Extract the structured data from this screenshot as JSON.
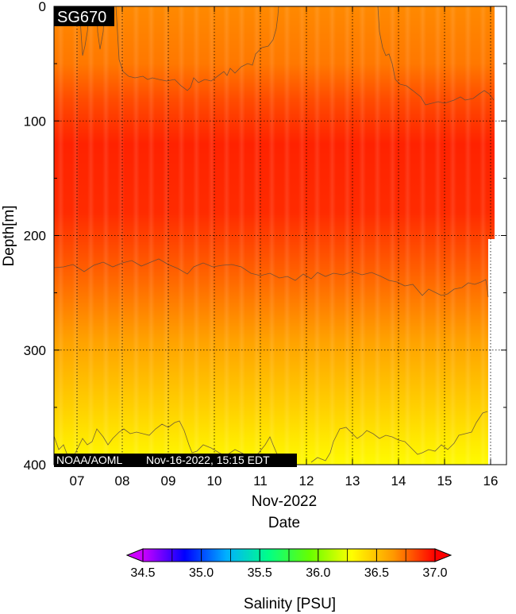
{
  "chart_data": {
    "type": "heatmap",
    "title": "SG670",
    "footer_left": "NOAA/AOML",
    "footer_right": "Nov-16-2022, 15:15 EDT",
    "xlabel_month": "Nov-2022",
    "xlabel": "Date",
    "ylabel": "Depth[m]",
    "x_ticks": [
      "07",
      "08",
      "09",
      "10",
      "11",
      "12",
      "13",
      "14",
      "15",
      "16"
    ],
    "y_ticks": [
      "0",
      "100",
      "200",
      "300",
      "400"
    ],
    "y_tick_values": [
      0,
      100,
      200,
      300,
      400
    ],
    "ylim": [
      0,
      400
    ],
    "colorbar": {
      "label": "Salinity [PSU]",
      "ticks": [
        "34.5",
        "35.0",
        "35.5",
        "36.0",
        "36.5",
        "37.0"
      ],
      "range": [
        34.5,
        37.0
      ],
      "colors": [
        "#cc00ff",
        "#0000ff",
        "#00b0ff",
        "#00ff88",
        "#66ff00",
        "#ffff00",
        "#ff9900",
        "#ff0000"
      ]
    },
    "profile_salinity": [
      {
        "depth": 0,
        "psu": 36.68
      },
      {
        "depth": 50,
        "psu": 36.72
      },
      {
        "depth": 80,
        "psu": 36.82
      },
      {
        "depth": 120,
        "psu": 36.92
      },
      {
        "depth": 180,
        "psu": 36.9
      },
      {
        "depth": 230,
        "psu": 36.78
      },
      {
        "depth": 290,
        "psu": 36.62
      },
      {
        "depth": 350,
        "psu": 36.45
      },
      {
        "depth": 400,
        "psu": 36.3
      }
    ],
    "contour_levels_psu": [
      36.8,
      36.7,
      36.4
    ]
  }
}
